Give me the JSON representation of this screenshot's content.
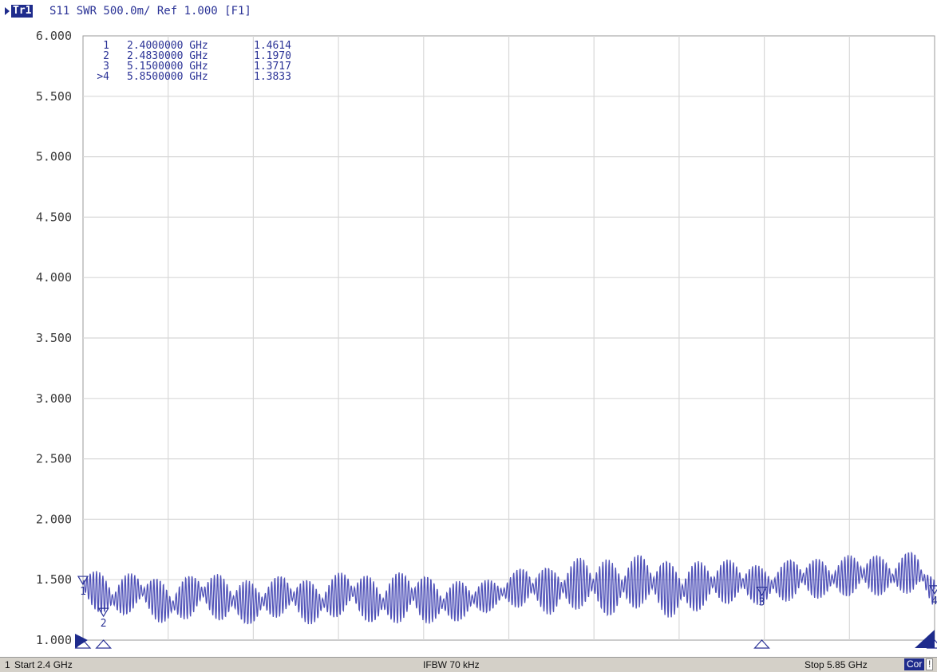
{
  "header": {
    "trace_label": "Tr1",
    "trace_title": "S11 SWR 500.0m/ Ref 1.000 [F1]"
  },
  "status_bar": {
    "channel": "1",
    "start": "Start 2.4 GHz",
    "ifbw": "IFBW 70 kHz",
    "stop": "Stop 5.85 GHz",
    "cor": "Cor",
    "flag": "!"
  },
  "colors": {
    "trace": "#5052b8",
    "marker": "#2a3296",
    "grid": "#d8d8d8",
    "header_bg": "#1e2b8c"
  },
  "chart_data": {
    "type": "line",
    "title": "S11 SWR 500.0m/ Ref 1.000 [F1]",
    "xlabel": "",
    "ylabel": "",
    "xlim": [
      2.4,
      5.85
    ],
    "ylim": [
      1.0,
      6.0
    ],
    "x_unit": "GHz",
    "grid": true,
    "yticks": [
      "1.000",
      "1.500",
      "2.000",
      "2.500",
      "3.000",
      "3.500",
      "4.000",
      "4.500",
      "5.000",
      "5.500",
      "6.000"
    ],
    "series": [
      {
        "x": [
          2.4,
          2.53,
          2.62,
          2.75,
          2.87,
          2.97,
          3.1,
          3.22,
          3.35,
          3.47,
          3.6,
          3.72,
          3.85,
          3.98,
          4.08,
          4.2,
          4.3,
          4.43,
          4.55,
          4.67,
          4.8,
          4.92,
          5.05,
          5.17,
          5.3,
          5.42,
          5.55,
          5.68,
          5.78,
          5.85
        ],
        "y": [
          1.46,
          1.33,
          1.42,
          1.28,
          1.4,
          1.34,
          1.3,
          1.38,
          1.29,
          1.41,
          1.3,
          1.38,
          1.3,
          1.34,
          1.38,
          1.45,
          1.4,
          1.48,
          1.42,
          1.5,
          1.4,
          1.46,
          1.49,
          1.44,
          1.52,
          1.5,
          1.55,
          1.52,
          1.58,
          1.38
        ],
        "ripple": [
          0.16,
          0.18,
          0.16,
          0.19,
          0.17,
          0.2,
          0.18,
          0.17,
          0.19,
          0.18,
          0.2,
          0.22,
          0.18,
          0.16,
          0.12,
          0.18,
          0.2,
          0.22,
          0.24,
          0.22,
          0.24,
          0.2,
          0.18,
          0.16,
          0.18,
          0.16,
          0.18,
          0.16,
          0.18,
          0.12
        ]
      }
    ],
    "markers": [
      {
        "label": "1",
        "freq": "2.4000000 GHz",
        "value": "1.4614",
        "x": 2.4,
        "y": 1.4614
      },
      {
        "label": "2",
        "freq": "2.4830000 GHz",
        "value": "1.1970",
        "x": 2.483,
        "y": 1.197
      },
      {
        "label": "3",
        "freq": "5.1500000 GHz",
        "value": "1.3717",
        "x": 5.15,
        "y": 1.3717
      },
      {
        "label": ">4",
        "freq": "5.8500000 GHz",
        "value": "1.3833",
        "x": 5.85,
        "y": 1.3833
      }
    ]
  }
}
